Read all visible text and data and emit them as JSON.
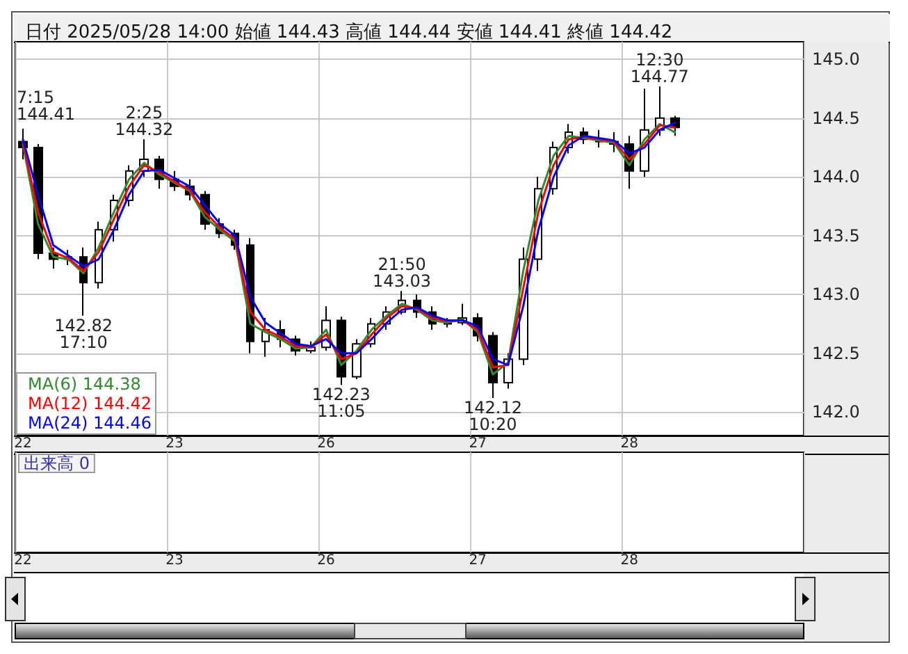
{
  "chart_data": {
    "type": "candlestick",
    "title": "日付 2025/05/28 14:00 始値 144.43 高値 144.44 安値 144.41 終値 144.42",
    "categories": [
      "22",
      null,
      null,
      null,
      null,
      null,
      null,
      null,
      null,
      null,
      "23",
      null,
      null,
      null,
      null,
      null,
      null,
      null,
      null,
      null,
      "26",
      null,
      null,
      null,
      null,
      null,
      null,
      null,
      null,
      null,
      "27",
      null,
      null,
      null,
      null,
      null,
      null,
      null,
      null,
      null,
      "28",
      null,
      null,
      null,
      null,
      null,
      null,
      null,
      null,
      null,
      null,
      null
    ],
    "color": "#000000",
    "ohlc": [
      [
        144.3,
        144.41,
        144.15,
        144.25
      ],
      [
        144.25,
        144.28,
        143.3,
        143.35
      ],
      [
        143.35,
        143.4,
        143.22,
        143.3
      ],
      [
        143.3,
        143.38,
        143.25,
        143.32
      ],
      [
        143.32,
        143.4,
        142.82,
        143.1
      ],
      [
        143.1,
        143.62,
        143.05,
        143.55
      ],
      [
        143.55,
        143.85,
        143.45,
        143.8
      ],
      [
        143.8,
        144.1,
        143.75,
        144.05
      ],
      [
        144.05,
        144.32,
        144.0,
        144.15
      ],
      [
        144.15,
        144.18,
        143.9,
        143.98
      ],
      [
        143.98,
        144.05,
        143.88,
        143.92
      ],
      [
        143.92,
        143.98,
        143.8,
        143.85
      ],
      [
        143.85,
        143.88,
        143.55,
        143.6
      ],
      [
        143.6,
        143.65,
        143.48,
        143.52
      ],
      [
        143.52,
        143.55,
        143.38,
        143.42
      ],
      [
        143.42,
        143.48,
        142.5,
        142.6
      ],
      [
        142.6,
        142.8,
        142.47,
        142.7
      ],
      [
        142.7,
        142.78,
        142.55,
        142.62
      ],
      [
        142.62,
        142.65,
        142.48,
        142.52
      ],
      [
        142.52,
        142.6,
        142.5,
        142.55
      ],
      [
        142.55,
        142.9,
        142.52,
        142.78
      ],
      [
        142.78,
        142.81,
        142.23,
        142.3
      ],
      [
        142.3,
        142.62,
        142.28,
        142.58
      ],
      [
        142.58,
        142.8,
        142.55,
        142.75
      ],
      [
        142.75,
        142.9,
        142.7,
        142.85
      ],
      [
        142.85,
        143.03,
        142.83,
        142.95
      ],
      [
        142.95,
        143.0,
        142.8,
        142.85
      ],
      [
        142.85,
        142.9,
        142.7,
        142.75
      ],
      [
        142.75,
        142.8,
        142.72,
        142.76
      ],
      [
        142.76,
        142.92,
        142.74,
        142.8
      ],
      [
        142.8,
        142.84,
        142.6,
        142.65
      ],
      [
        142.65,
        142.68,
        142.12,
        142.25
      ],
      [
        142.25,
        142.5,
        142.2,
        142.45
      ],
      [
        142.45,
        143.4,
        142.4,
        143.3
      ],
      [
        143.3,
        144.0,
        143.2,
        143.9
      ],
      [
        143.9,
        144.3,
        143.85,
        144.25
      ],
      [
        144.25,
        144.45,
        144.2,
        144.38
      ],
      [
        144.38,
        144.42,
        144.28,
        144.32
      ],
      [
        144.32,
        144.4,
        144.25,
        144.3
      ],
      [
        144.3,
        144.38,
        144.21,
        144.28
      ],
      [
        144.28,
        144.35,
        143.9,
        144.05
      ],
      [
        144.05,
        144.75,
        144.0,
        144.4
      ],
      [
        144.4,
        144.77,
        144.35,
        144.5
      ],
      [
        144.5,
        144.52,
        144.35,
        144.42
      ],
      null,
      null,
      null,
      null,
      null,
      null,
      null,
      null
    ],
    "series": [
      {
        "type": "line",
        "name": "MA(6) 144.38",
        "color": "#2e8b2e",
        "values": [
          144.28,
          143.6,
          143.32,
          143.3,
          143.18,
          143.4,
          143.7,
          143.98,
          144.12,
          144.02,
          143.95,
          143.88,
          143.66,
          143.55,
          143.45,
          142.75,
          142.68,
          142.62,
          142.54,
          142.55,
          142.7,
          142.4,
          142.52,
          142.7,
          142.82,
          142.92,
          142.87,
          142.78,
          142.76,
          142.79,
          142.68,
          142.32,
          142.42,
          143.2,
          143.8,
          144.18,
          144.35,
          144.33,
          144.31,
          144.29,
          144.1,
          144.32,
          144.45,
          144.38,
          null,
          null,
          null,
          null,
          null,
          null,
          null,
          null
        ]
      },
      {
        "type": "line",
        "name": "MA(12) 144.42",
        "color": "#ff0000",
        "values": [
          144.3,
          143.7,
          143.36,
          143.31,
          143.2,
          143.36,
          143.64,
          143.92,
          144.1,
          144.04,
          143.96,
          143.89,
          143.7,
          143.57,
          143.47,
          142.85,
          142.7,
          142.64,
          142.56,
          142.55,
          142.66,
          142.45,
          142.5,
          142.66,
          142.8,
          142.9,
          142.88,
          142.8,
          142.77,
          142.78,
          142.7,
          142.38,
          142.4,
          143.05,
          143.7,
          144.1,
          144.32,
          144.34,
          144.32,
          144.3,
          144.15,
          144.28,
          144.44,
          144.42,
          null,
          null,
          null,
          null,
          null,
          null,
          null,
          null
        ]
      },
      {
        "type": "line",
        "name": "MA(24) 144.46",
        "color": "#0000ff",
        "values": [
          144.32,
          143.85,
          143.42,
          143.33,
          143.24,
          143.3,
          143.55,
          143.85,
          144.05,
          144.06,
          143.99,
          143.92,
          143.76,
          143.6,
          143.5,
          142.98,
          142.76,
          142.67,
          142.58,
          142.56,
          142.62,
          142.5,
          142.5,
          142.62,
          142.76,
          142.87,
          142.89,
          142.82,
          142.78,
          142.78,
          142.73,
          142.45,
          142.4,
          142.9,
          143.55,
          144.0,
          144.27,
          144.35,
          144.33,
          144.31,
          144.2,
          144.25,
          144.4,
          144.46,
          null,
          null,
          null,
          null,
          null,
          null,
          null,
          null
        ]
      }
    ],
    "ylim": [
      141.8,
      145.15
    ],
    "yticks": [
      {
        "value": 142,
        "label": "142.0"
      },
      142.5,
      {
        "value": 143,
        "label": "143.0"
      },
      143.5,
      {
        "value": 144,
        "label": "144.0"
      },
      144.5,
      {
        "value": 145,
        "label": "145.0"
      }
    ],
    "annotations": [
      "7:15\n144.41",
      {
        "text": "142.82\n17:10",
        "y": 142.82
      },
      {
        "text": "2:25\n144.32",
        "y": 144.32
      },
      {
        "text": "142.23\n11:05",
        "y": 142.23
      },
      {
        "text": "21:50\n143.03",
        "y": 143.03
      },
      {
        "text": "142.12\n10:20",
        "y": 142.12
      },
      {
        "text": "12:30\n144.77",
        "y": 144.77
      },
      "出来高 0"
    ],
    "grid": true,
    "legend": "bottom left",
    "marker": "none",
    "line_style": "solid"
  }
}
